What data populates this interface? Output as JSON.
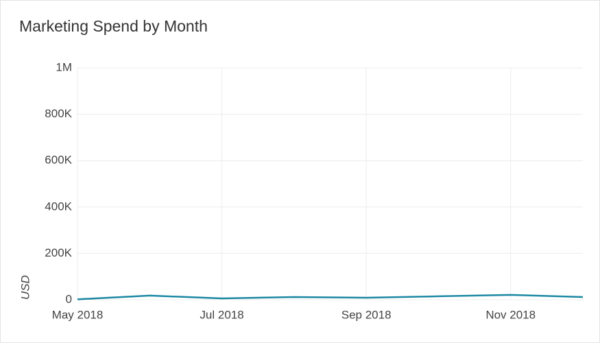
{
  "chart_data": {
    "type": "line",
    "title": "Marketing Spend by Month",
    "y_label": "USD",
    "categories": [
      "May 2018",
      null,
      "Jul 2018",
      null,
      "Sep 2018",
      null,
      "Nov 2018",
      null
    ],
    "series": [
      {
        "name": "Marketing Spend",
        "color": "#1a87a3",
        "values": [
          2000,
          18000,
          6000,
          12000,
          9000,
          15000,
          21000,
          12000
        ]
      }
    ],
    "ylim": [
      0,
      1000000
    ],
    "yticks": [
      0,
      {
        "value": 200000,
        "label": "200K"
      },
      {
        "value": 400000,
        "label": "400K"
      },
      {
        "value": 600000,
        "label": "600K"
      },
      {
        "value": 800000,
        "label": "800K"
      },
      {
        "value": 1000000,
        "label": "1M"
      }
    ],
    "grid": true
  }
}
